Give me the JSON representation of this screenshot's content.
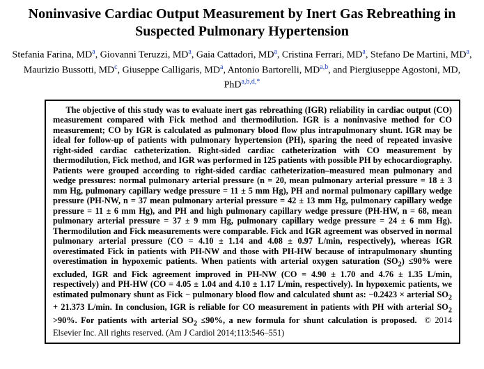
{
  "title": "Noninvasive Cardiac Output Measurement by Inert Gas Rebreathing in Suspected Pulmonary Hypertension",
  "authors_html": "Stefania Farina, MD<sup>a</sup>, Giovanni Teruzzi, MD<sup>a</sup>, Gaia Cattadori, MD<sup>a</sup>, Cristina Ferrari, MD<sup>a</sup>, Stefano De Martini, MD<sup>a</sup>, Maurizio Bussotti, MD<sup>c</sup>, Giuseppe Calligaris, MD<sup>a</sup>, Antonio Bartorelli, MD<sup>a,b</sup>, and Piergiuseppe Agostoni, MD, PhD<sup>a,b,d,</sup><sup class=\"star\">*</sup>",
  "abstract_html": "<b>The objective of this study was to evaluate inert gas rebreathing (IGR) reliability in cardiac output (CO) measurement compared with Fick method and thermodilution. IGR is a noninvasive method for CO measurement; CO by IGR is calculated as pulmonary blood flow plus intrapulmonary shunt. IGR may be ideal for follow-up of patients with pulmonary hypertension (PH), sparing the need of repeated invasive right-sided cardiac catheterization. Right-sided cardiac catheterization with CO measurement by thermodilution, Fick method, and IGR was performed in 125 patients with possible PH by echocardiography. Patients were grouped according to right-sided cardiac catheterization–measured mean pulmonary and wedge pressures: normal pulmonary arterial pressure (n = 20, mean pulmonary arterial pressure = 18 ± 3 mm Hg, pulmonary capillary wedge pressure = 11 ± 5 mm Hg), PH and normal pulmonary capillary wedge pressure (PH-NW, n = 37 mean pulmonary arterial pressure = 42 ± 13 mm Hg, pulmonary capillary wedge pressure = 11 ± 6 mm Hg), and PH and high pulmonary capillary wedge pressure (PH-HW, n = 68, mean pulmonary arterial pressure = 37 ± 9 mm Hg, pulmonary capillary wedge pressure = 24 ± 6 mm Hg). Thermodilution and Fick measurements were comparable. Fick and IGR agreement was observed in normal pulmonary arterial pressure (CO = 4.10 ± 1.14 and 4.08 ± 0.97 L/min, respectively), whereas IGR overestimated Fick in patients with PH-NW and those with PH-HW because of intrapulmonary shunting overestimation in hypoxemic patients. When patients with arterial oxygen saturation (SO<sub>2</sub>) ≤90% were excluded, IGR and Fick agreement improved in PH-NW (CO = 4.90 ± 1.70 and 4.76 ± 1.35 L/min, respectively) and PH-HW (CO = 4.05 ± 1.04 and 4.10 ± 1.17 L/min, respectively). In hypoxemic patients, we estimated pulmonary shunt as Fick − pulmonary blood flow and calculated shunt as: −0.2423 × arterial SO<sub>2</sub> + 21.373 L/min. In conclusion, IGR is reliable for CO measurement in patients with PH with arterial SO<sub>2</sub> &gt;90%. For patients with arterial SO<sub>2</sub> ≤90%, a new formula for shunt calculation is proposed.</b> &nbsp;© 2014 Elsevier Inc. All rights reserved. (Am J Cardiol 2014;113:546–551)"
}
